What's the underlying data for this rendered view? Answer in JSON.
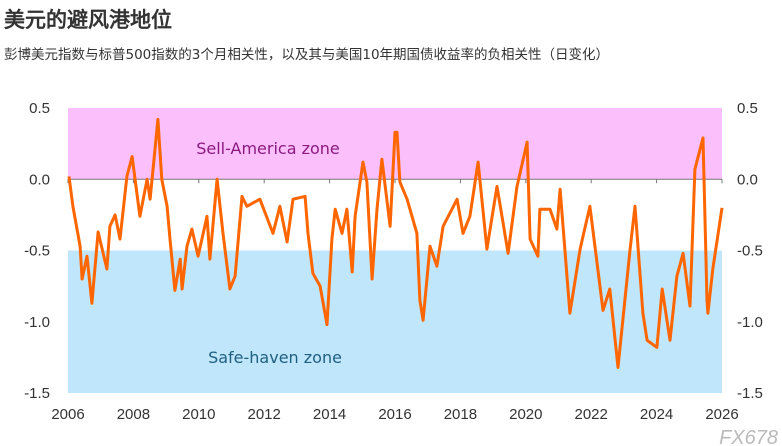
{
  "header": {
    "title": "美元的避风港地位",
    "subtitle": "彭博美元指数与标普500指数的3个月相关性，以及其与美国10年期国债收益率的负相关性（日变化）"
  },
  "watermark": "FX678",
  "chart_data": {
    "type": "line",
    "title": "美元的避风港地位",
    "xlabel": "",
    "ylabel": "",
    "xlim": [
      2006,
      2026
    ],
    "ylim": [
      -1.5,
      0.5
    ],
    "x_ticks": [
      "2006",
      "2008",
      "2010",
      "2012",
      "2014",
      "2016",
      "2018",
      "2020",
      "2022",
      "2024",
      "2026"
    ],
    "y_ticks": [
      "0.5",
      "0.0",
      "-0.5",
      "-1.0",
      "-1.5"
    ],
    "y_axis_both_sides": true,
    "grid": false,
    "line_color": "#ff6600",
    "zones": [
      {
        "label": "Sell-America zone",
        "from": 0.0,
        "to": 0.5,
        "fill": "#fbbffb",
        "text_color": "#8a1a80"
      },
      {
        "label": "Safe-haven zone",
        "from": -1.5,
        "to": -0.5,
        "fill": "#bfe6fb",
        "text_color": "#1f5f80"
      }
    ],
    "series": [
      {
        "x": [
          2006.03,
          2006.15,
          2006.37,
          2006.43,
          2006.58,
          2006.73,
          2006.92,
          2007.19,
          2007.28,
          2007.44,
          2007.59,
          2007.8,
          2007.96,
          2008.2,
          2008.42,
          2008.51,
          2008.66,
          2008.75,
          2008.87,
          2009.03,
          2009.12,
          2009.27,
          2009.43,
          2009.49,
          2009.64,
          2009.79,
          2009.98,
          2010.25,
          2010.34,
          2010.56,
          2010.74,
          2010.95,
          2011.11,
          2011.32,
          2011.47,
          2011.87,
          2012.27,
          2012.48,
          2012.7,
          2012.88,
          2013.25,
          2013.34,
          2013.49,
          2013.71,
          2013.92,
          2014.07,
          2014.17,
          2014.38,
          2014.53,
          2014.69,
          2014.78,
          2015.02,
          2015.14,
          2015.3,
          2015.45,
          2015.6,
          2015.85,
          2016.0,
          2016.06,
          2016.15,
          2016.37,
          2016.67,
          2016.76,
          2016.86,
          2017.07,
          2017.28,
          2017.47,
          2017.9,
          2018.08,
          2018.29,
          2018.54,
          2018.81,
          2019.12,
          2019.46,
          2019.73,
          2020.04,
          2020.13,
          2020.37,
          2020.43,
          2020.74,
          2020.95,
          2021.05,
          2021.35,
          2021.66,
          2021.96,
          2022.36,
          2022.57,
          2022.82,
          2023.19,
          2023.34,
          2023.58,
          2023.71,
          2024.01,
          2024.17,
          2024.41,
          2024.62,
          2024.81,
          2025.02,
          2025.17,
          2025.42,
          2025.54,
          2025.57,
          2025.72,
          2026.0
        ],
        "y": [
          0.02,
          -0.19,
          -0.47,
          -0.7,
          -0.54,
          -0.87,
          -0.37,
          -0.63,
          -0.33,
          -0.25,
          -0.42,
          0.02,
          0.16,
          -0.26,
          0.0,
          -0.14,
          0.21,
          0.42,
          0.0,
          -0.19,
          -0.42,
          -0.78,
          -0.56,
          -0.77,
          -0.47,
          -0.35,
          -0.54,
          -0.26,
          -0.56,
          0.0,
          -0.38,
          -0.77,
          -0.68,
          -0.12,
          -0.19,
          -0.14,
          -0.38,
          -0.19,
          -0.44,
          -0.14,
          -0.12,
          -0.38,
          -0.66,
          -0.75,
          -1.02,
          -0.42,
          -0.21,
          -0.38,
          -0.21,
          -0.65,
          -0.26,
          0.12,
          -0.02,
          -0.7,
          -0.21,
          0.14,
          -0.33,
          0.33,
          0.33,
          -0.02,
          -0.14,
          -0.38,
          -0.85,
          -0.99,
          -0.47,
          -0.61,
          -0.33,
          -0.14,
          -0.38,
          -0.26,
          0.12,
          -0.49,
          -0.05,
          -0.52,
          -0.05,
          0.26,
          -0.42,
          -0.54,
          -0.21,
          -0.21,
          -0.35,
          -0.07,
          -0.94,
          -0.49,
          -0.19,
          -0.92,
          -0.77,
          -1.32,
          -0.49,
          -0.19,
          -0.94,
          -1.13,
          -1.18,
          -0.77,
          -1.13,
          -0.68,
          -0.52,
          -0.89,
          0.07,
          0.29,
          -0.85,
          -0.94,
          -0.63,
          -0.2
        ]
      }
    ]
  }
}
